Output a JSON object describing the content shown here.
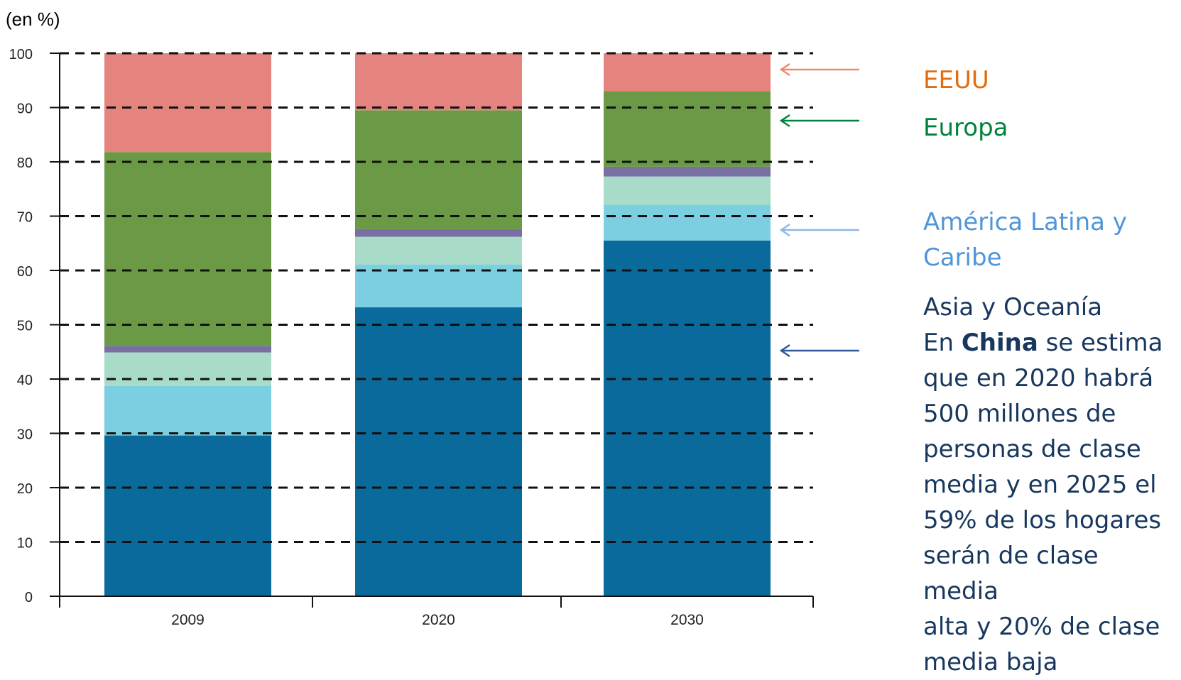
{
  "chart_data": {
    "type": "bar",
    "stacked": true,
    "unit_label": "(en %)",
    "categories": [
      "2009",
      "2020",
      "2030"
    ],
    "y_ticks": [
      "0",
      "10",
      "20",
      "30",
      "40",
      "50",
      "60",
      "70",
      "80",
      "90",
      "100"
    ],
    "ylim": [
      0,
      100
    ],
    "grid": "dashed horizontal",
    "series": [
      {
        "name": "Asia y Oceanía",
        "color": "#0b6a9c",
        "values": [
          29.6,
          53.2,
          65.5
        ]
      },
      {
        "name": "América Latina y Caribe",
        "color": "#7ccfe0",
        "values": [
          9.1,
          7.9,
          6.6
        ]
      },
      {
        "name": "",
        "color": "#a8dcc8",
        "values": [
          6.2,
          5.1,
          5.2
        ]
      },
      {
        "name": "",
        "color": "#7a6fa3",
        "values": [
          1.2,
          1.4,
          1.8
        ]
      },
      {
        "name": "Europa",
        "color": "#6b9a46",
        "values": [
          35.7,
          21.9,
          13.9
        ]
      },
      {
        "name": "EEUU",
        "color": "#e5837f",
        "values": [
          18.2,
          10.5,
          7.0
        ]
      }
    ]
  },
  "annotations": {
    "eeuu": {
      "label": "EEUU",
      "color": "#e46c0a",
      "arrow_color": "#ef8a6a"
    },
    "europa": {
      "label": "Europa",
      "color": "#00823b",
      "arrow_color": "#00823b"
    },
    "latam": {
      "line1": "América Latina y",
      "line2": "Caribe",
      "color": "#4f95d8",
      "arrow_color": "#8fb8e6"
    },
    "asia": {
      "title": "Asia y Oceanía",
      "pre": "En ",
      "bold": "China",
      "post": " se estima",
      "lines": [
        "que en 2020 habrá",
        "500 millones de",
        "personas de clase",
        "media y en 2025 el",
        "59% de los hogares",
        "serán de clase media",
        "alta y 20% de clase",
        "media baja"
      ],
      "arrow_color": "#2e5a9c"
    }
  }
}
